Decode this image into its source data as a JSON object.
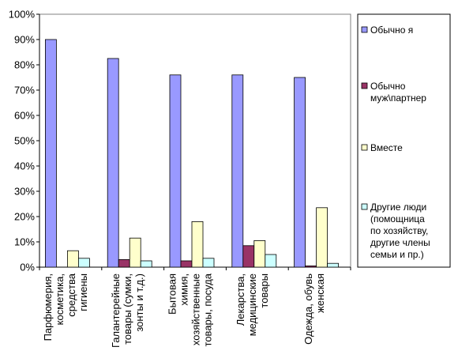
{
  "chart_data": {
    "type": "bar",
    "categories": [
      [
        "Парфюмерия,",
        "косметика,",
        "средства",
        "гигиены"
      ],
      [
        "Галантерейные",
        "товары (сумки,",
        "зонты и т.д.)"
      ],
      [
        "Бытовая",
        "химия,",
        "хозяйственные",
        "товары, посуда"
      ],
      [
        "Лекарства,",
        "медицинские",
        "товары"
      ],
      [
        "Одежда, обувь",
        "женская"
      ]
    ],
    "series": [
      {
        "name": "Обычно я",
        "values": [
          90,
          82.5,
          76,
          76,
          75
        ]
      },
      {
        "name": [
          "Обычно",
          "муж\\партнер"
        ],
        "values": [
          0,
          3,
          2.5,
          8.5,
          0.5
        ]
      },
      {
        "name": [
          "Вместе"
        ],
        "values": [
          6.5,
          11.5,
          18,
          10.5,
          23.5
        ]
      },
      {
        "name": [
          "Другие люди",
          "(помощница",
          "по хозяйству,",
          "другие члены",
          "семьи и пр.)"
        ],
        "values": [
          3.5,
          2.5,
          3.5,
          5,
          1.5
        ]
      }
    ],
    "colors": [
      "#9999ff",
      "#993366",
      "#ffffcc",
      "#ccffff"
    ],
    "y_ticks": [
      "0%",
      "10%",
      "20%",
      "30%",
      "40%",
      "50%",
      "60%",
      "70%",
      "80%",
      "90%",
      "100%"
    ],
    "ylim": [
      0,
      100
    ],
    "grid": false,
    "legend_position": "right",
    "title": "",
    "xlabel": "",
    "ylabel": ""
  }
}
